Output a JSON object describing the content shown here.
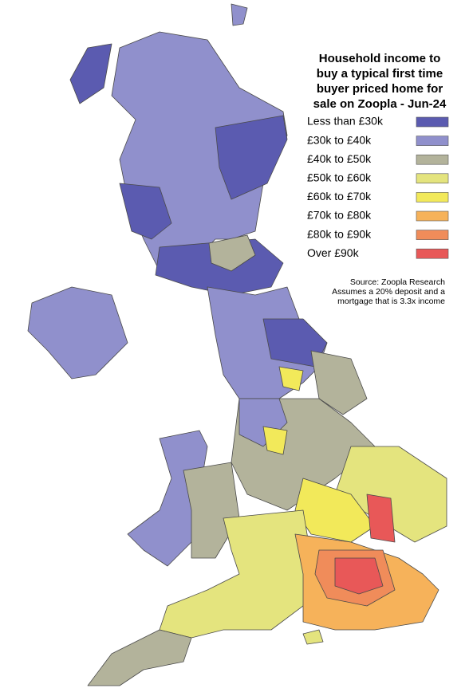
{
  "title_lines": [
    "Household income to",
    "buy a typical first time",
    "buyer priced home for",
    "sale on Zoopla - Jun-24"
  ],
  "legend": [
    {
      "label": "Less than £30k",
      "color": "#5b5bb0"
    },
    {
      "label": "£30k to £40k",
      "color": "#9090cc"
    },
    {
      "label": "£40k to £50k",
      "color": "#b3b39b"
    },
    {
      "label": "£50k to £60k",
      "color": "#e4e47e"
    },
    {
      "label": "£60k to £70k",
      "color": "#f2e95a"
    },
    {
      "label": "£70k to £80k",
      "color": "#f6b25a"
    },
    {
      "label": "£80k to £90k",
      "color": "#f08c5a"
    },
    {
      "label": "Over £90k",
      "color": "#e85858"
    }
  ],
  "source_lines": [
    "Source: Zoopla Research",
    "Assumes a 20% deposit and a",
    "mortgage that is 3.3x income"
  ]
}
